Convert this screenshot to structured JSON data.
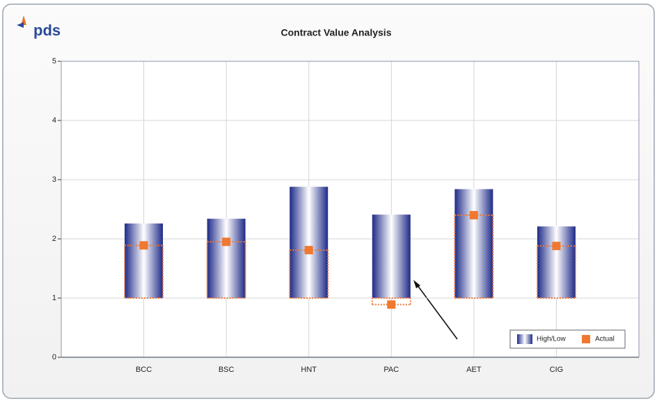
{
  "chart_data": {
    "type": "range_bar",
    "logo": "pds",
    "title": "Contract Value Analysis",
    "categories": [
      "BCC",
      "BSC",
      "HNT",
      "PAC",
      "AET",
      "CIG"
    ],
    "series": [
      {
        "name": "High/Low",
        "color": "#2e3a9a",
        "low": [
          1,
          1,
          1,
          1,
          1,
          1
        ],
        "high": [
          2.26,
          2.34,
          2.88,
          2.41,
          2.84,
          2.21
        ]
      },
      {
        "name": "Actual",
        "color": "#f07830",
        "values": [
          1.89,
          1.95,
          1.81,
          0.89,
          2.4,
          1.88
        ]
      }
    ],
    "ylim": [
      0,
      5
    ],
    "yticks": [
      0,
      1,
      2,
      3,
      4,
      5
    ],
    "grid": true,
    "legend": "bottom-right"
  }
}
